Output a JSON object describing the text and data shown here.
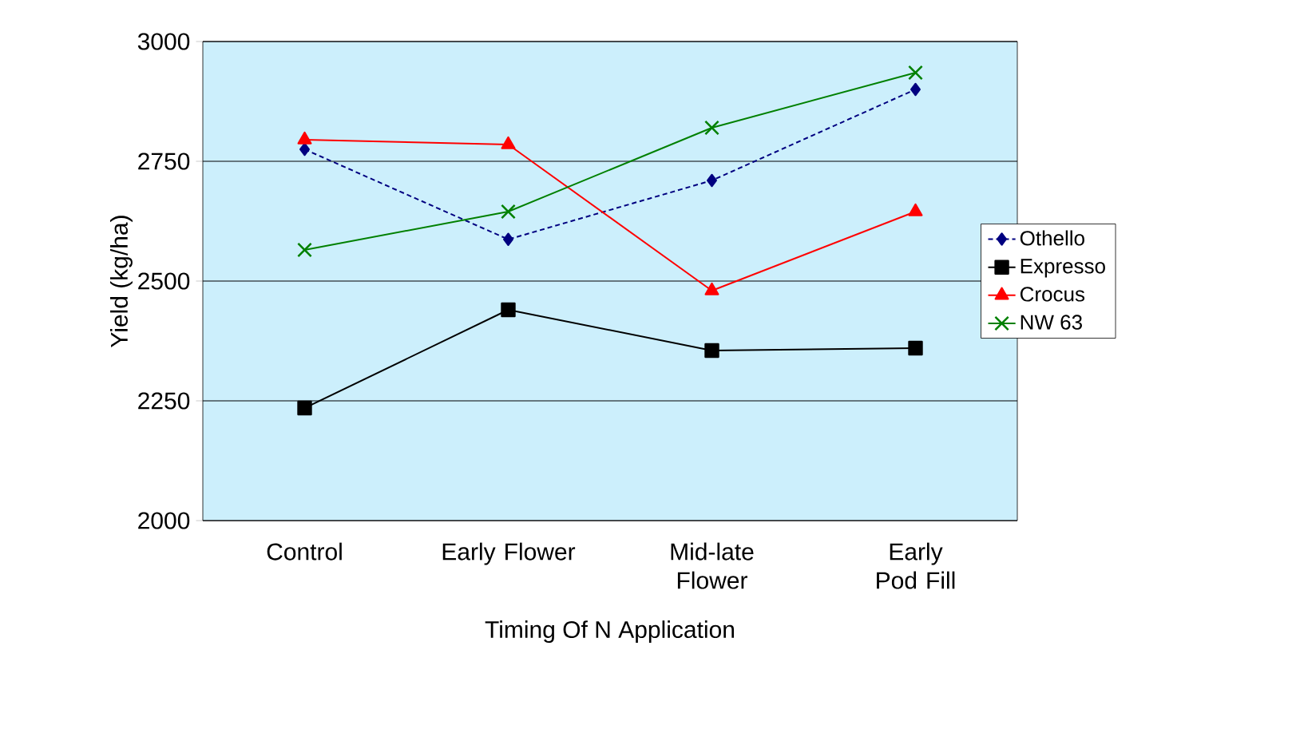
{
  "chart_data": {
    "type": "line",
    "xlabel": "Timing Of N Application",
    "ylabel": "Yield (kg/ha)",
    "categories": [
      "Control",
      "Early Flower",
      "Mid-late Flower",
      "Early Pod Fill"
    ],
    "ylim": [
      2000,
      3000
    ],
    "yticks": [
      2000,
      2250,
      2500,
      2750,
      3000
    ],
    "grid": "y",
    "legend": "right",
    "series": [
      {
        "name": "Othello",
        "color": "#000080",
        "marker": "diamond",
        "line_style": "dotted",
        "values": [
          2775,
          2587,
          2710,
          2900
        ]
      },
      {
        "name": "Expresso",
        "color": "#000000",
        "marker": "square",
        "line_style": "solid",
        "values": [
          2235,
          2440,
          2355,
          2360
        ]
      },
      {
        "name": "Crocus",
        "color": "#ff0000",
        "marker": "triangle",
        "line_style": "solid",
        "values": [
          2795,
          2785,
          2480,
          2645
        ]
      },
      {
        "name": "NW 63",
        "color": "#008000",
        "marker": "cross",
        "line_style": "solid",
        "values": [
          2565,
          2645,
          2820,
          2935
        ]
      }
    ]
  }
}
